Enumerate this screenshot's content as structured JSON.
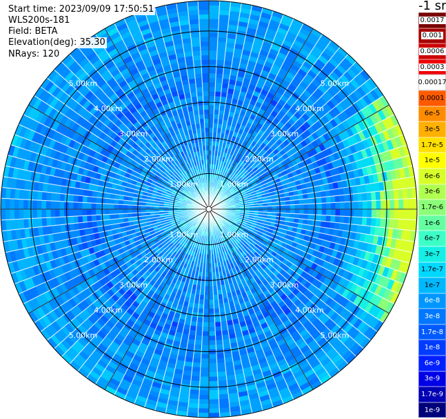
{
  "header": {
    "start_time": "Start time: 2023/09/09 17:50:51",
    "instrument": "WLS200s-181",
    "field": "Field: BETA",
    "elevation": "Elevation(deg): 35.30",
    "nrays": "NRays: 120"
  },
  "colorbar": {
    "unit": "-1 sr",
    "levels": [
      {
        "label": "0.0017",
        "color": "#7a0000"
      },
      {
        "label": "0.001",
        "color": "#a80000"
      },
      {
        "label": "0.0006",
        "color": "#cc0000"
      },
      {
        "label": "0.0003",
        "color": "#ee0000"
      },
      {
        "label": "0.00017",
        "color": "#ffffff"
      },
      {
        "label": "0.0001",
        "color": "#ff5a00"
      },
      {
        "label": "6e-5",
        "color": "#ff8c00"
      },
      {
        "label": "3e-5",
        "color": "#ffb000"
      },
      {
        "label": "1.7e-5",
        "color": "#ffe000"
      },
      {
        "label": "1e-5",
        "color": "#ffff00"
      },
      {
        "label": "6e-6",
        "color": "#d8ff28"
      },
      {
        "label": "3e-6",
        "color": "#b0ff50"
      },
      {
        "label": "1.7e-6",
        "color": "#8cff78"
      },
      {
        "label": "1e-6",
        "color": "#64ffa0"
      },
      {
        "label": "6e-7",
        "color": "#3cffc8"
      },
      {
        "label": "3e-7",
        "color": "#14f0e6"
      },
      {
        "label": "1.7e-7",
        "color": "#00d8ff"
      },
      {
        "label": "1e-7",
        "color": "#00b8ff"
      },
      {
        "label": "6e-8",
        "color": "#0096ff"
      },
      {
        "label": "3e-8",
        "color": "#0078ff"
      },
      {
        "label": "1.7e-8",
        "color": "#005aff"
      },
      {
        "label": "1e-8",
        "color": "#003cff"
      },
      {
        "label": "6e-9",
        "color": "#0020ff"
      },
      {
        "label": "3e-9",
        "color": "#0000e6"
      },
      {
        "label": "1.7e-9",
        "color": "#0000b4"
      },
      {
        "label": "1e-9",
        "color": "#00007a"
      }
    ]
  },
  "chart_data": {
    "type": "heatmap",
    "projection": "polar (PPI scan)",
    "field": "BETA",
    "elevation_deg": 35.3,
    "n_rays": 120,
    "range_rings": [
      {
        "range_km": 1.0,
        "label": "1.00km"
      },
      {
        "range_km": 2.0,
        "label": "2.00km"
      },
      {
        "range_km": 3.0,
        "label": "3.00km"
      },
      {
        "range_km": 4.0,
        "label": "4.00km"
      },
      {
        "range_km": 5.0,
        "label": "5.00km"
      }
    ],
    "max_range_km": 5.85,
    "spokes_deg": [
      0,
      30,
      60,
      90,
      120,
      150,
      180,
      210,
      240,
      270,
      300,
      330
    ],
    "dominant_value": "3e-8 to 1e-7",
    "near_center_value": "3e-7 to 1e-6",
    "east_edge_value": "1e-6 to 6e-6"
  },
  "colors": {
    "rings": "#000000",
    "ring_labels": "#ffffff",
    "ray_gaps": "#ffffff"
  }
}
